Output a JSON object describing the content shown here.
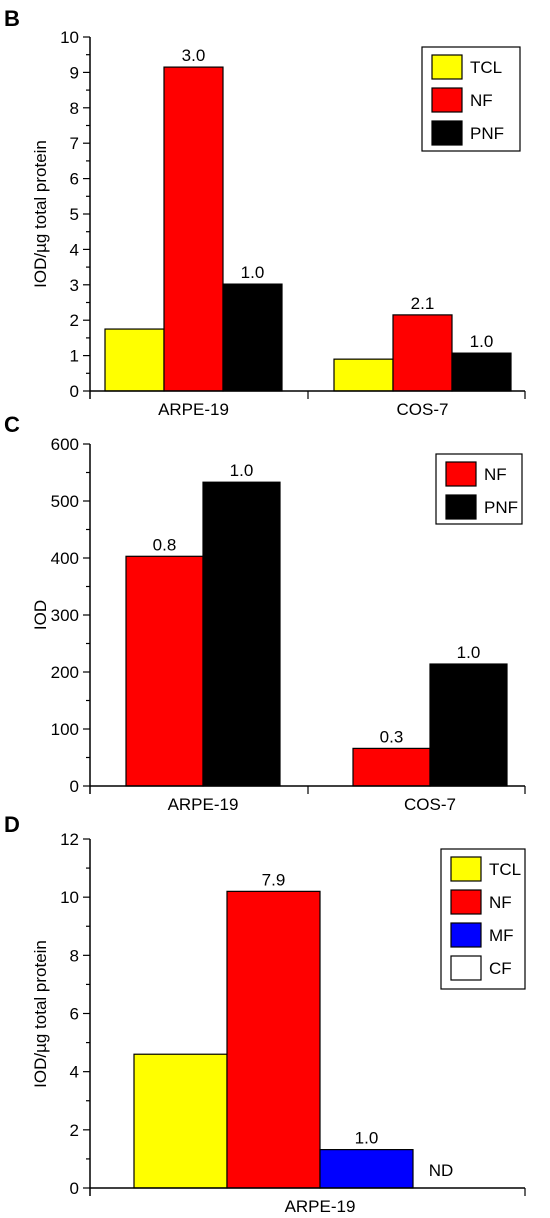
{
  "colors": {
    "TCL": "#ffff00",
    "NF": "#ff0000",
    "PNF": "#000000",
    "MF": "#0000ff",
    "CF": "#ffffff"
  },
  "chart_data": [
    {
      "panel": "B",
      "type": "bar",
      "ylabel": "IOD/µg total protein",
      "ylim": [
        0,
        10
      ],
      "yticks": [
        0,
        1,
        2,
        3,
        4,
        5,
        6,
        7,
        8,
        9,
        10
      ],
      "categories": [
        "ARPE-19",
        "COS-7"
      ],
      "series": [
        {
          "name": "TCL",
          "values": [
            1.75,
            0.9
          ]
        },
        {
          "name": "NF",
          "values": [
            9.15,
            2.15
          ]
        },
        {
          "name": "PNF",
          "values": [
            3.02,
            1.07
          ]
        }
      ],
      "bar_labels": [
        {
          "series": "NF",
          "category": "ARPE-19",
          "text": "3.0"
        },
        {
          "series": "PNF",
          "category": "ARPE-19",
          "text": "1.0"
        },
        {
          "series": "NF",
          "category": "COS-7",
          "text": "2.1"
        },
        {
          "series": "PNF",
          "category": "COS-7",
          "text": "1.0"
        }
      ],
      "legend": [
        "TCL",
        "NF",
        "PNF"
      ],
      "legend_position": "top-right"
    },
    {
      "panel": "C",
      "type": "bar",
      "ylabel": "IOD",
      "ylim": [
        0,
        600
      ],
      "yticks": [
        0,
        100,
        200,
        300,
        400,
        500,
        600
      ],
      "categories": [
        "ARPE-19",
        "COS-7"
      ],
      "series": [
        {
          "name": "NF",
          "values": [
            403,
            66
          ]
        },
        {
          "name": "PNF",
          "values": [
            533,
            214
          ]
        }
      ],
      "bar_labels": [
        {
          "series": "NF",
          "category": "ARPE-19",
          "text": "0.8"
        },
        {
          "series": "PNF",
          "category": "ARPE-19",
          "text": "1.0"
        },
        {
          "series": "NF",
          "category": "COS-7",
          "text": "0.3"
        },
        {
          "series": "PNF",
          "category": "COS-7",
          "text": "1.0"
        }
      ],
      "legend": [
        "NF",
        "PNF"
      ],
      "legend_position": "top-right"
    },
    {
      "panel": "D",
      "type": "bar",
      "ylabel": "IOD/µg total protein",
      "ylim": [
        0,
        12
      ],
      "yticks": [
        0,
        2,
        4,
        6,
        8,
        10,
        12
      ],
      "categories": [
        "ARPE-19"
      ],
      "series": [
        {
          "name": "TCL",
          "values": [
            4.6
          ]
        },
        {
          "name": "NF",
          "values": [
            10.2
          ]
        },
        {
          "name": "MF",
          "values": [
            1.32
          ]
        },
        {
          "name": "CF",
          "values": [
            0
          ]
        }
      ],
      "bar_labels": [
        {
          "series": "NF",
          "category": "ARPE-19",
          "text": "7.9"
        },
        {
          "series": "MF",
          "category": "ARPE-19",
          "text": "1.0"
        },
        {
          "series": "CF",
          "category": "ARPE-19",
          "text": "ND"
        }
      ],
      "legend": [
        "TCL",
        "NF",
        "MF",
        "CF"
      ],
      "legend_position": "top-right"
    }
  ]
}
